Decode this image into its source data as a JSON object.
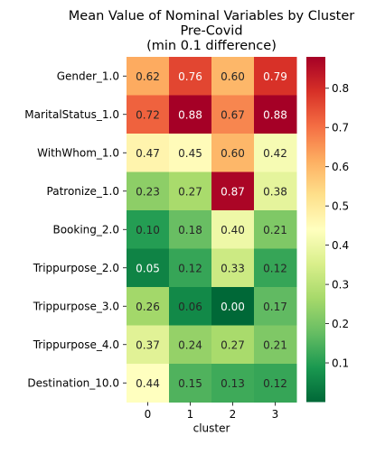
{
  "chart_data": {
    "type": "heatmap",
    "title_lines": [
      "Mean Value of Nominal Variables by Cluster",
      "Pre-Covid",
      "(min 0.1 difference)"
    ],
    "xlabel": "cluster",
    "ylabel": "",
    "x": [
      "0",
      "1",
      "2",
      "3"
    ],
    "y": [
      "Gender_1.0",
      "MaritalStatus_1.0",
      "WithWhom_1.0",
      "Patronize_1.0",
      "Booking_2.0",
      "Trippurpose_2.0",
      "Trippurpose_3.0",
      "Trippurpose_4.0",
      "Destination_10.0"
    ],
    "values": [
      [
        0.62,
        0.76,
        0.6,
        0.79
      ],
      [
        0.72,
        0.88,
        0.67,
        0.88
      ],
      [
        0.47,
        0.45,
        0.6,
        0.42
      ],
      [
        0.23,
        0.27,
        0.87,
        0.38
      ],
      [
        0.1,
        0.18,
        0.4,
        0.21
      ],
      [
        0.05,
        0.12,
        0.33,
        0.12
      ],
      [
        0.26,
        0.06,
        0.0,
        0.17
      ],
      [
        0.37,
        0.24,
        0.27,
        0.21
      ],
      [
        0.44,
        0.15,
        0.13,
        0.12
      ]
    ],
    "labels": [
      [
        "0.62",
        "0.76",
        "0.60",
        "0.79"
      ],
      [
        "0.72",
        "0.88",
        "0.67",
        "0.88"
      ],
      [
        "0.47",
        "0.45",
        "0.60",
        "0.42"
      ],
      [
        "0.23",
        "0.27",
        "0.87",
        "0.38"
      ],
      [
        "0.10",
        "0.18",
        "0.40",
        "0.21"
      ],
      [
        "0.05",
        "0.12",
        "0.33",
        "0.12"
      ],
      [
        "0.26",
        "0.06",
        "0.00",
        "0.17"
      ],
      [
        "0.37",
        "0.24",
        "0.27",
        "0.21"
      ],
      [
        "0.44",
        "0.15",
        "0.13",
        "0.12"
      ]
    ],
    "colormap": "RdYlGn_r",
    "vmin": 0.0,
    "vmax": 0.88,
    "colorbar_ticks": [
      0.1,
      0.2,
      0.3,
      0.4,
      0.5,
      0.6,
      0.7,
      0.8
    ],
    "colorbar_tick_labels": [
      "0.1",
      "0.2",
      "0.3",
      "0.4",
      "0.5",
      "0.6",
      "0.7",
      "0.8"
    ]
  }
}
